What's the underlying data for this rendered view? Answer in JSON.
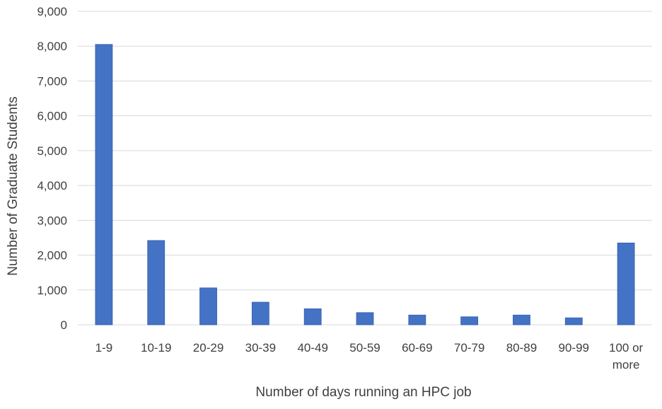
{
  "chart_data": {
    "type": "bar",
    "title": "",
    "xlabel": "Number of days running an HPC job",
    "ylabel": "Number of Graduate Students",
    "categories": [
      "1-9",
      "10-19",
      "20-29",
      "30-39",
      "40-49",
      "50-59",
      "60-69",
      "70-79",
      "80-89",
      "90-99",
      "100 or more"
    ],
    "category_lines": [
      [
        "1-9"
      ],
      [
        "10-19"
      ],
      [
        "20-29"
      ],
      [
        "30-39"
      ],
      [
        "40-49"
      ],
      [
        "50-59"
      ],
      [
        "60-69"
      ],
      [
        "70-79"
      ],
      [
        "80-89"
      ],
      [
        "90-99"
      ],
      [
        "100 or",
        "more"
      ]
    ],
    "values": [
      8050,
      2420,
      1060,
      650,
      460,
      350,
      280,
      230,
      280,
      200,
      2350
    ],
    "ylim": [
      0,
      9000
    ],
    "yticks": [
      0,
      1000,
      2000,
      3000,
      4000,
      5000,
      6000,
      7000,
      8000,
      9000
    ],
    "ytick_labels": [
      "0",
      "1,000",
      "2,000",
      "3,000",
      "4,000",
      "5,000",
      "6,000",
      "7,000",
      "8,000",
      "9,000"
    ],
    "grid": true,
    "legend": "none",
    "colors": {
      "bar": "#4472C4",
      "bar_edge": "#3560AE",
      "grid": "#D9D9D9",
      "text": "#404040"
    }
  }
}
